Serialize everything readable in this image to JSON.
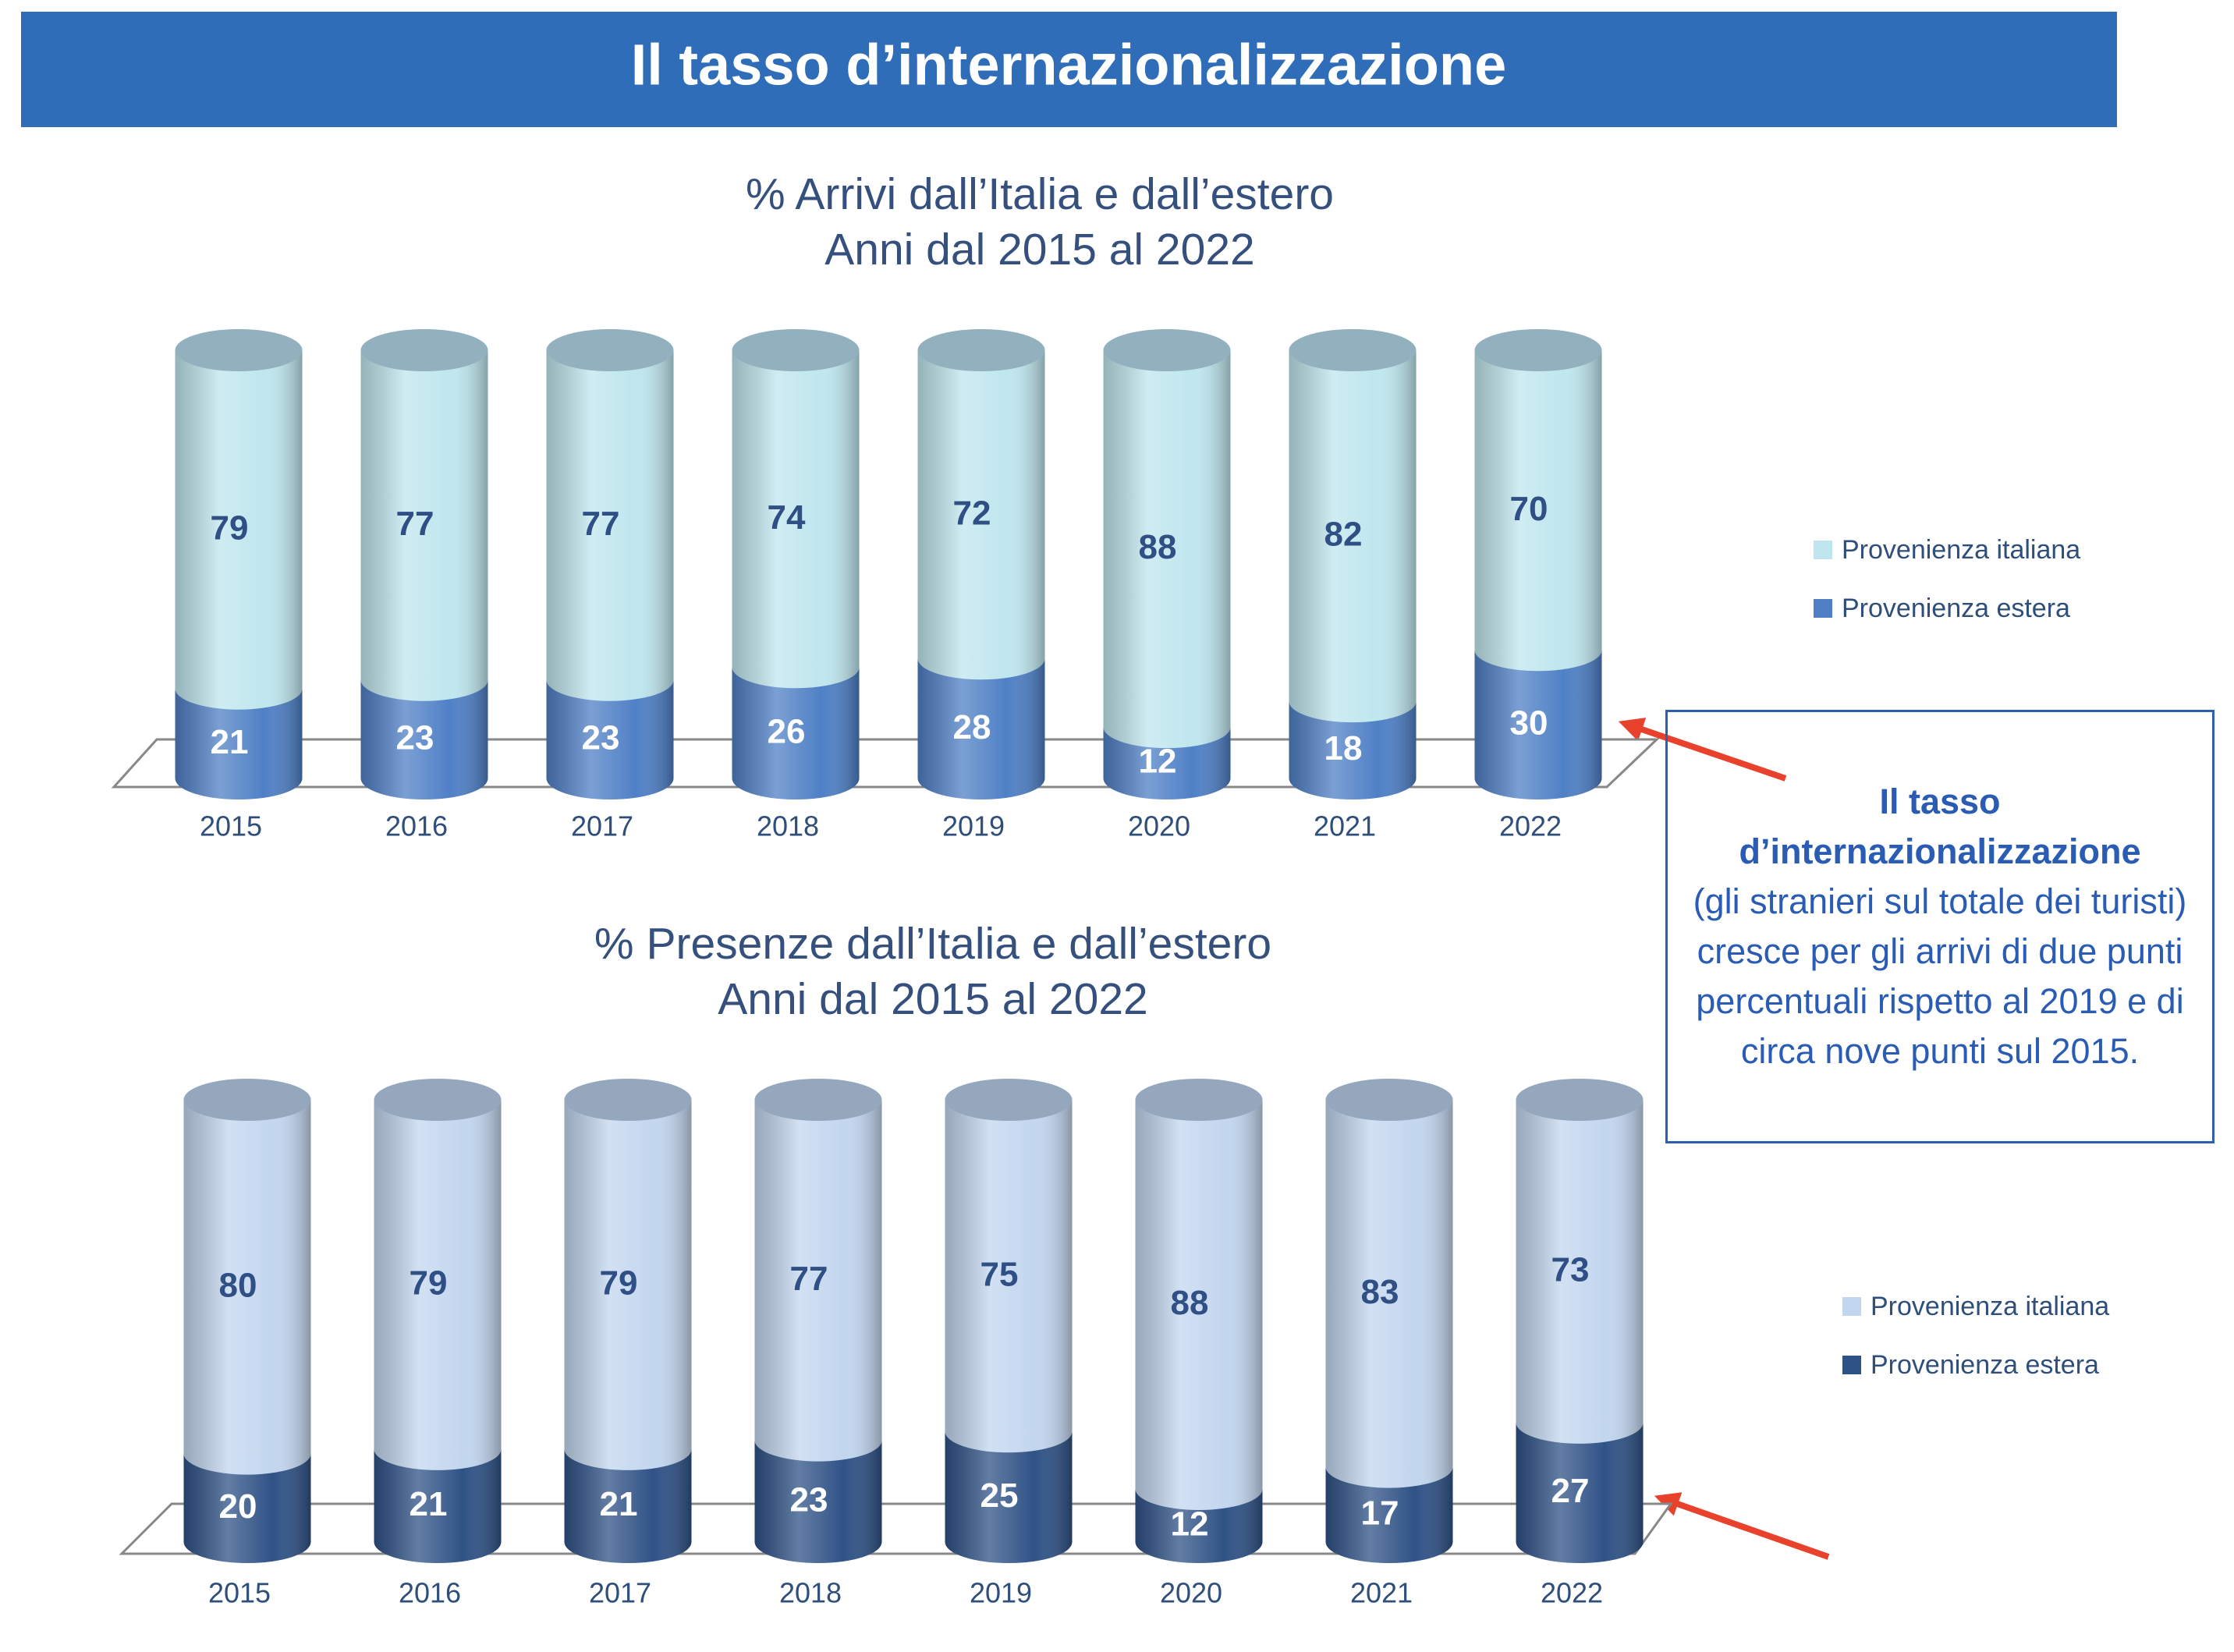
{
  "header": {
    "title": "Il tasso d’internazionalizzazione"
  },
  "callout": {
    "heading": "Il tasso d’internazionalizzazione",
    "text": "(gli stranieri sul totale dei turisti) cresce per gli arrivi di due punti percentuali rispetto al 2019 e di circa nove punti sul 2015."
  },
  "chart_data": [
    {
      "type": "bar",
      "stacked": true,
      "title": "% Arrivi dall’Italia e dall’estero",
      "subtitle": "Anni dal 2015 al 2022",
      "categories": [
        "2015",
        "2016",
        "2017",
        "2018",
        "2019",
        "2020",
        "2021",
        "2022"
      ],
      "series": [
        {
          "name": "Provenienza italiana",
          "color": "#bfe6ee",
          "label_color": "#2f4f85",
          "values": [
            79,
            77,
            77,
            74,
            72,
            88,
            82,
            70
          ]
        },
        {
          "name": "Provenienza estera",
          "color": "#4f80c6",
          "label_color": "#ffffff",
          "values": [
            21,
            23,
            23,
            26,
            28,
            12,
            18,
            30
          ]
        }
      ],
      "legend": "right"
    },
    {
      "type": "bar",
      "stacked": true,
      "title": "% Presenze dall’Italia e dall’estero",
      "subtitle": "Anni dal 2015 al 2022",
      "categories": [
        "2015",
        "2016",
        "2017",
        "2018",
        "2019",
        "2020",
        "2021",
        "2022"
      ],
      "series": [
        {
          "name": "Provenienza italiana",
          "color": "#c3d6ef",
          "label_color": "#2f4f85",
          "values": [
            80,
            79,
            79,
            77,
            75,
            88,
            83,
            73
          ]
        },
        {
          "name": "Provenienza estera",
          "color": "#2f5286",
          "label_color": "#ffffff",
          "values": [
            20,
            21,
            21,
            23,
            25,
            12,
            17,
            27
          ]
        }
      ],
      "legend": "right"
    }
  ]
}
